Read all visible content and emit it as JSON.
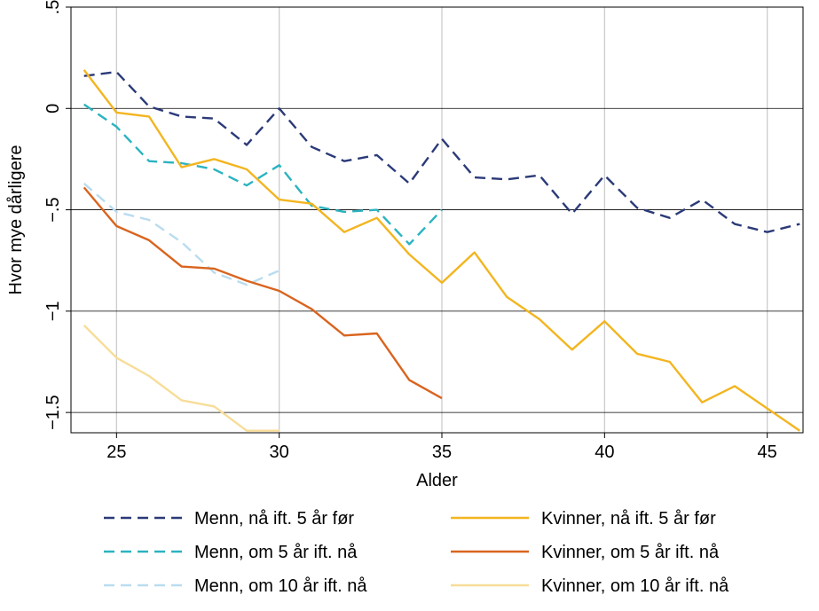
{
  "chart_data": {
    "type": "line",
    "xlabel": "Alder",
    "ylabel": "Hvor mye dårligere",
    "xlim": [
      23.6,
      46.1
    ],
    "ylim": [
      -1.6,
      0.5
    ],
    "xticks": [
      25,
      30,
      35,
      40,
      45
    ],
    "yticks": [
      0.5,
      0,
      -0.5,
      -1,
      -1.5
    ],
    "xtick_labels": [
      "25",
      "30",
      "35",
      "40",
      "45"
    ],
    "ytick_labels": [
      ".5",
      "0",
      "−.5",
      "−1",
      "−1.5"
    ],
    "grid": {
      "vertical_lines_at_xticks": true,
      "horizontal_lines_at_yticks": true
    },
    "legend_position": "bottom",
    "series": [
      {
        "name": "Menn, nå ift. 5 år før",
        "color": "#2b3a78",
        "style": "dashed",
        "x": [
          24,
          25,
          26,
          27,
          28,
          29,
          30,
          31,
          32,
          33,
          34,
          35,
          36,
          37,
          38,
          39,
          40,
          41,
          42,
          43,
          44,
          45,
          46
        ],
        "y": [
          0.16,
          0.18,
          0.01,
          -0.04,
          -0.05,
          -0.18,
          0.0,
          -0.19,
          -0.26,
          -0.23,
          -0.37,
          -0.15,
          -0.34,
          -0.35,
          -0.33,
          -0.52,
          -0.33,
          -0.49,
          -0.54,
          -0.45,
          -0.57,
          -0.61,
          -0.57
        ]
      },
      {
        "name": "Menn, om 5 år ift. nå",
        "color": "#2bb3c0",
        "style": "dashed",
        "x": [
          24,
          25,
          26,
          27,
          28,
          29,
          30,
          31,
          32,
          33,
          34,
          35
        ],
        "y": [
          0.02,
          -0.09,
          -0.26,
          -0.27,
          -0.3,
          -0.38,
          -0.28,
          -0.48,
          -0.51,
          -0.5,
          -0.67,
          -0.5
        ]
      },
      {
        "name": "Menn, om 10 år ift. nå",
        "color": "#b9dcef",
        "style": "dashed",
        "x": [
          24,
          25,
          26,
          27,
          28,
          29,
          30
        ],
        "y": [
          -0.37,
          -0.51,
          -0.55,
          -0.66,
          -0.81,
          -0.87,
          -0.8
        ]
      },
      {
        "name": "Kvinner, nå ift. 5 år før",
        "color": "#f3b51f",
        "style": "solid",
        "x": [
          24,
          25,
          26,
          27,
          28,
          29,
          30,
          31,
          32,
          33,
          34,
          35,
          36,
          37,
          38,
          39,
          40,
          41,
          42,
          43,
          44,
          45,
          46
        ],
        "y": [
          0.19,
          -0.02,
          -0.04,
          -0.29,
          -0.25,
          -0.3,
          -0.45,
          -0.47,
          -0.61,
          -0.54,
          -0.72,
          -0.86,
          -0.71,
          -0.93,
          -1.04,
          -1.19,
          -1.05,
          -1.21,
          -1.25,
          -1.45,
          -1.37,
          -1.48,
          -1.59
        ]
      },
      {
        "name": "Kvinner, om 5 år ift. nå",
        "color": "#d9641e",
        "style": "solid",
        "x": [
          24,
          25,
          26,
          27,
          28,
          29,
          30,
          31,
          32,
          33,
          34,
          35
        ],
        "y": [
          -0.39,
          -0.58,
          -0.65,
          -0.78,
          -0.79,
          -0.85,
          -0.9,
          -0.99,
          -1.12,
          -1.11,
          -1.34,
          -1.43
        ]
      },
      {
        "name": "Kvinner, om 10 år ift. nå",
        "color": "#f7dd98",
        "style": "solid",
        "x": [
          24,
          25,
          26,
          27,
          28,
          29,
          30
        ],
        "y": [
          -1.07,
          -1.23,
          -1.32,
          -1.44,
          -1.47,
          -1.59,
          -1.59
        ]
      }
    ]
  }
}
